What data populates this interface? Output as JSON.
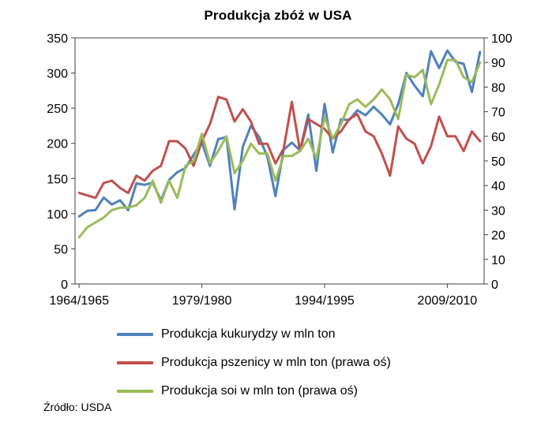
{
  "source": "Źródło: USDA",
  "chart_data": {
    "type": "line",
    "title": "Produkcja zbóż w USA",
    "x_start_season": "1964/1965",
    "x_end_season": "2013/2014",
    "x_tick_labels": [
      "1964/1965",
      "1979/1980",
      "1994/1995",
      "2009/2010"
    ],
    "x_tick_indices": [
      0,
      15,
      30,
      45
    ],
    "left_axis": {
      "min": 0,
      "max": 350,
      "step": 50,
      "applies_to": "Produkcja kukurydzy w mln ton"
    },
    "right_axis": {
      "min": 0,
      "max": 100,
      "step": 10,
      "applies_to": "Produkcja pszenicy i soi w mln ton"
    },
    "grid": false,
    "legend_position": "bottom-left",
    "series": [
      {
        "key": "corn",
        "name": "Produkcja kukurydzy w mln ton",
        "axis": "left",
        "color": "#4F81BD",
        "values": [
          96,
          104,
          105,
          123,
          113,
          119,
          105,
          143,
          141,
          144,
          119,
          148,
          159,
          165,
          184,
          201,
          168,
          206,
          209,
          106,
          195,
          225,
          209,
          181,
          125,
          191,
          201,
          190,
          241,
          161,
          256,
          187,
          234,
          233,
          247,
          240,
          252,
          241,
          227,
          256,
          300,
          282,
          267,
          331,
          307,
          332,
          316,
          313,
          273,
          330
        ]
      },
      {
        "key": "wheat",
        "name": "Produkcja pszenicy w mln ton (prawa oś)",
        "axis": "right",
        "color": "#C0504D",
        "values": [
          37,
          36,
          35,
          41,
          42,
          39,
          37,
          44,
          42,
          46,
          48,
          58,
          58,
          55,
          48,
          58,
          65,
          76,
          75,
          66,
          71,
          66,
          57,
          57,
          49,
          55,
          74,
          54,
          67,
          65,
          63,
          59,
          62,
          67,
          69,
          62,
          60,
          53,
          44,
          64,
          59,
          57,
          49,
          56,
          68,
          60,
          60,
          54,
          62,
          58
        ]
      },
      {
        "key": "soy",
        "name": "Produkcja soi w mln ton (prawa oś)",
        "axis": "right",
        "color": "#9BBB59",
        "values": [
          19,
          23,
          25,
          27,
          30,
          31,
          31,
          32,
          35,
          42,
          33,
          42,
          35,
          48,
          50,
          61,
          49,
          54,
          60,
          45,
          50,
          57,
          53,
          53,
          42,
          52,
          52,
          54,
          59,
          51,
          68,
          59,
          65,
          73,
          75,
          72,
          75,
          79,
          75,
          67,
          85,
          84,
          87,
          73,
          81,
          91,
          91,
          84,
          82,
          90
        ]
      }
    ]
  }
}
